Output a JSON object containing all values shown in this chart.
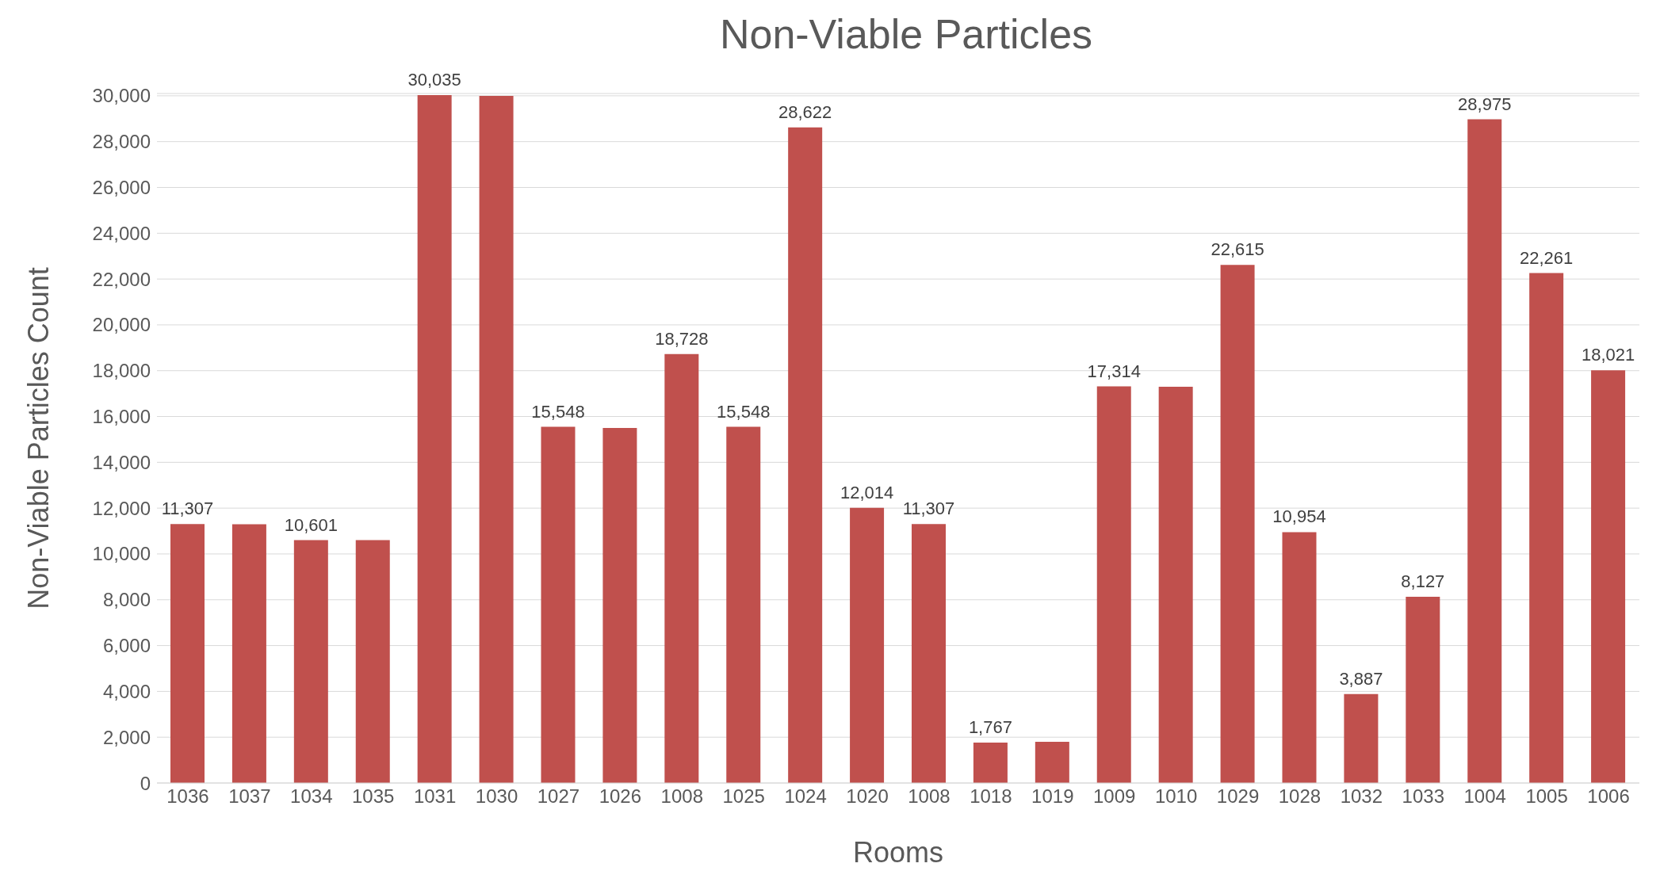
{
  "chart_data": {
    "type": "bar",
    "title": "Non-Viable Particles",
    "xlabel": "Rooms",
    "ylabel": "Non-Viable Particles Count",
    "categories": [
      "1036",
      "1037",
      "1034",
      "1035",
      "1031",
      "1030",
      "1027",
      "1026",
      "1008",
      "1025",
      "1024",
      "1020",
      "1008",
      "1018",
      "1019",
      "1009",
      "1010",
      "1029",
      "1028",
      "1032",
      "1033",
      "1004",
      "1005",
      "1006"
    ],
    "values": [
      11307,
      11300,
      10601,
      10600,
      30035,
      30000,
      15548,
      15500,
      18728,
      15548,
      28622,
      12014,
      11307,
      1767,
      1800,
      17314,
      17300,
      22615,
      10954,
      3887,
      8127,
      28975,
      22261,
      18021
    ],
    "value_labels": [
      "11,307",
      null,
      "10,601",
      null,
      "30,035",
      null,
      "15,548",
      null,
      "18,728",
      "15,548",
      "28,622",
      "12,014",
      "11,307",
      "1,767",
      null,
      "17,314",
      null,
      "22,615",
      "10,954",
      "3,887",
      "8,127",
      "28,975",
      "22,261",
      "18,021"
    ],
    "color": "#c0504d",
    "ylim": [
      0,
      30100
    ],
    "yticks": [
      0,
      {
        "value": 2000,
        "label": "2,000"
      },
      {
        "value": 4000,
        "label": "4,000"
      },
      {
        "value": 6000,
        "label": "6,000"
      },
      {
        "value": 8000,
        "label": "8,000"
      },
      {
        "value": 10000,
        "label": "10,000"
      },
      {
        "value": 12000,
        "label": "12,000"
      },
      {
        "value": 14000,
        "label": "14,000"
      },
      {
        "value": 16000,
        "label": "16,000"
      },
      {
        "value": 18000,
        "label": "18,000"
      },
      {
        "value": 20000,
        "label": "20,000"
      },
      {
        "value": 22000,
        "label": "22,000"
      },
      {
        "value": 24000,
        "label": "24,000"
      },
      {
        "value": 26000,
        "label": "26,000"
      },
      {
        "value": 28000,
        "label": "28,000"
      },
      {
        "value": 30000,
        "label": "30,000"
      }
    ],
    "grid": "y"
  }
}
